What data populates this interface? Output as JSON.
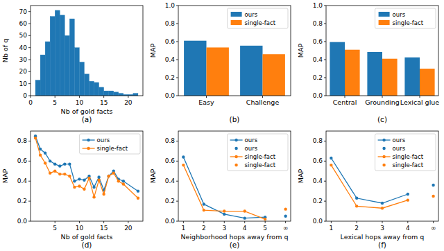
{
  "chart_data": [
    {
      "type": "histogram",
      "title": "(a)",
      "xlabel": "Nb of gold facts",
      "ylabel": "Nb of q",
      "color": "#1f77b4",
      "bins": [
        1,
        2,
        3,
        4,
        5,
        6,
        7,
        8,
        9,
        10,
        11,
        12,
        13,
        14,
        15,
        16,
        17,
        18,
        19,
        20,
        21,
        22
      ],
      "values": [
        13,
        34,
        45,
        66,
        71,
        67,
        50,
        64,
        40,
        28,
        18,
        12,
        11,
        7,
        4,
        4,
        3,
        2,
        1,
        1,
        2
      ],
      "xlim": [
        0,
        23
      ],
      "xticks": [
        0,
        5,
        10,
        15,
        20
      ],
      "ylim": [
        0,
        75
      ],
      "yticks": [
        0,
        10,
        20,
        30,
        40,
        50,
        60,
        70
      ]
    },
    {
      "type": "bar",
      "title": "(b)",
      "ylabel": "MAP",
      "categories": [
        "Easy",
        "Challenge"
      ],
      "series": [
        {
          "name": "ours",
          "color": "#1f77b4",
          "values": [
            0.61,
            0.555
          ]
        },
        {
          "name": "single-fact",
          "color": "#ff7f0e",
          "values": [
            0.535,
            0.46
          ]
        }
      ],
      "ylim": [
        0,
        1
      ],
      "yticks": [
        {
          "value": 0,
          "label": "0.0"
        },
        {
          "value": 0.2,
          "label": "0.2"
        },
        {
          "value": 0.4,
          "label": "0.4"
        },
        {
          "value": 0.6,
          "label": "0.6"
        },
        {
          "value": 0.8,
          "label": "0.8"
        },
        {
          "value": 1,
          "label": "1.0"
        }
      ],
      "legend": "upper right"
    },
    {
      "type": "bar",
      "title": "(c)",
      "ylabel": "MAP",
      "categories": [
        "Central",
        "Grounding",
        "Lexical glue"
      ],
      "series": [
        {
          "name": "ours",
          "color": "#1f77b4",
          "values": [
            0.595,
            0.485,
            0.425
          ]
        },
        {
          "name": "single-fact",
          "color": "#ff7f0e",
          "values": [
            0.51,
            0.41,
            0.3
          ]
        }
      ],
      "ylim": [
        0,
        1
      ],
      "yticks": [
        {
          "value": 0,
          "label": "0.0"
        },
        {
          "value": 0.2,
          "label": "0.2"
        },
        {
          "value": 0.4,
          "label": "0.4"
        },
        {
          "value": 0.6,
          "label": "0.6"
        },
        {
          "value": 0.8,
          "label": "0.8"
        },
        {
          "value": 1,
          "label": "1.0"
        }
      ],
      "legend": "upper right"
    },
    {
      "type": "line",
      "title": "(d)",
      "xlabel": "Nb of gold facts",
      "ylabel": "MAP",
      "x": [
        1,
        2,
        3,
        4,
        5,
        6,
        7,
        8,
        9,
        10,
        11,
        12,
        13,
        14,
        15,
        16,
        17,
        18,
        19,
        22
      ],
      "series": [
        {
          "name": "ours",
          "color": "#1f77b4",
          "marker": "o",
          "line_style": "solid",
          "values": [
            0.85,
            0.72,
            0.68,
            0.6,
            0.57,
            0.55,
            0.57,
            0.57,
            0.4,
            0.42,
            0.41,
            0.45,
            0.34,
            0.44,
            0.31,
            0.45,
            0.5,
            0.42,
            0.4,
            0.3
          ]
        },
        {
          "name": "single-fact",
          "color": "#ff7f0e",
          "marker": "o",
          "line_style": "solid",
          "values": [
            0.83,
            0.66,
            0.58,
            0.48,
            0.5,
            0.47,
            0.47,
            0.45,
            0.34,
            0.35,
            0.32,
            0.43,
            0.24,
            0.41,
            0.27,
            0.45,
            0.48,
            0.4,
            0.37,
            0.23
          ]
        }
      ],
      "xlim": [
        0,
        23
      ],
      "xticks": [
        5,
        10,
        15,
        20
      ],
      "ylim": [
        0,
        0.9
      ],
      "yticks": [
        {
          "value": 0,
          "label": "0.0"
        },
        {
          "value": 0.2,
          "label": "0.2"
        },
        {
          "value": 0.4,
          "label": "0.4"
        },
        {
          "value": 0.6,
          "label": "0.6"
        },
        {
          "value": 0.8,
          "label": "0.8"
        }
      ],
      "legend": "upper right"
    },
    {
      "type": "line",
      "title": "(e)",
      "xlabel": "Neighborhood hops away from q",
      "ylabel": "MAP",
      "series": [
        {
          "name": "ours",
          "color": "#1f77b4",
          "marker": "o",
          "line_style": "solid",
          "x": [
            1,
            2,
            3,
            4,
            5
          ],
          "values": [
            0.64,
            0.17,
            0.07,
            0.03,
            0.04
          ]
        },
        {
          "name": "ours",
          "color": "#1f77b4",
          "marker": "o",
          "line_style": "none",
          "x": [
            6
          ],
          "values": [
            0.05
          ]
        },
        {
          "name": "single-fact",
          "color": "#ff7f0e",
          "marker": "o",
          "line_style": "solid",
          "x": [
            1,
            2,
            3,
            4,
            5
          ],
          "values": [
            0.56,
            0.11,
            0.1,
            0.1,
            0.02
          ]
        },
        {
          "name": "single-fact",
          "color": "#ff7f0e",
          "marker": "o",
          "line_style": "none",
          "x": [
            6
          ],
          "values": [
            0.12
          ]
        }
      ],
      "xlim": [
        0.75,
        6.25
      ],
      "xticks": [
        1,
        2,
        3,
        4,
        5,
        {
          "value": 6,
          "label": "∞"
        }
      ],
      "ylim": [
        0,
        0.9
      ],
      "yticks": [
        {
          "value": 0,
          "label": "0.0"
        },
        {
          "value": 0.2,
          "label": "0.2"
        },
        {
          "value": 0.4,
          "label": "0.4"
        },
        {
          "value": 0.6,
          "label": "0.6"
        },
        {
          "value": 0.8,
          "label": "0.8"
        }
      ],
      "legend": "upper right"
    },
    {
      "type": "line",
      "title": "(f)",
      "xlabel": "Lexical hops away from q",
      "ylabel": "MAP",
      "series": [
        {
          "name": "ours",
          "color": "#1f77b4",
          "marker": "o",
          "line_style": "solid",
          "x": [
            1,
            2,
            3,
            4
          ],
          "values": [
            0.63,
            0.23,
            0.18,
            0.27
          ]
        },
        {
          "name": "ours",
          "color": "#1f77b4",
          "marker": "o",
          "line_style": "none",
          "x": [
            5
          ],
          "values": [
            0.36
          ]
        },
        {
          "name": "single-fact",
          "color": "#ff7f0e",
          "marker": "o",
          "line_style": "solid",
          "x": [
            1,
            2,
            3,
            4
          ],
          "values": [
            0.56,
            0.15,
            0.13,
            0.21
          ]
        },
        {
          "name": "single-fact",
          "color": "#ff7f0e",
          "marker": "o",
          "line_style": "none",
          "x": [
            5
          ],
          "values": [
            0.25
          ]
        }
      ],
      "xlim": [
        0.8,
        5.2
      ],
      "xticks": [
        1,
        2,
        3,
        4,
        {
          "value": 5,
          "label": "∞"
        }
      ],
      "ylim": [
        0,
        0.9
      ],
      "yticks": [
        {
          "value": 0,
          "label": "0.0"
        },
        {
          "value": 0.2,
          "label": "0.2"
        },
        {
          "value": 0.4,
          "label": "0.4"
        },
        {
          "value": 0.6,
          "label": "0.6"
        },
        {
          "value": 0.8,
          "label": "0.8"
        }
      ],
      "legend": "upper right"
    }
  ]
}
